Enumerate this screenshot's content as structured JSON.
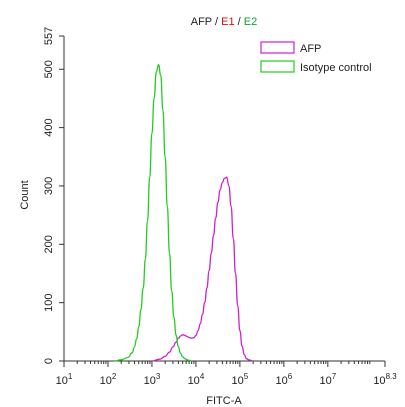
{
  "chart_data": {
    "type": "line",
    "title_parts": [
      {
        "text": "AFP",
        "color": "#222222"
      },
      {
        "text": " / ",
        "color": "#222222"
      },
      {
        "text": "E1",
        "color": "#d01010"
      },
      {
        "text": " / ",
        "color": "#222222"
      },
      {
        "text": "E2",
        "color": "#10a030"
      }
    ],
    "xlabel": "FITC-A",
    "ylabel": "Count",
    "x_scale": "log",
    "xlim": [
      10,
      199526231
    ],
    "ylim": [
      0,
      557
    ],
    "x_ticks": [
      {
        "value": 10,
        "base": "10",
        "exp": "1"
      },
      {
        "value": 100,
        "base": "10",
        "exp": "2"
      },
      {
        "value": 1000,
        "base": "10",
        "exp": "3"
      },
      {
        "value": 10000,
        "base": "10",
        "exp": "4"
      },
      {
        "value": 100000,
        "base": "10",
        "exp": "5"
      },
      {
        "value": 1000000,
        "base": "10",
        "exp": "6"
      },
      {
        "value": 10000000,
        "base": "10",
        "exp": "7"
      },
      {
        "value": 199526231,
        "base": "10",
        "exp": "8.3"
      }
    ],
    "y_ticks": [
      {
        "value": 0,
        "label": "0"
      },
      {
        "value": 100,
        "label": "100"
      },
      {
        "value": 200,
        "label": "200"
      },
      {
        "value": 300,
        "label": "300"
      },
      {
        "value": 400,
        "label": "400"
      },
      {
        "value": 500,
        "label": "500"
      },
      {
        "value": 557,
        "label": "557"
      }
    ],
    "grid": false,
    "legend_position": "top-right",
    "series": [
      {
        "name": "AFP",
        "color": "#cc22cc",
        "x": [
          1000,
          1500,
          2000,
          2500,
          3000,
          3500,
          4000,
          4500,
          5000,
          5600,
          6300,
          7100,
          8000,
          9000,
          10000,
          11200,
          12600,
          14100,
          15800,
          17800,
          20000,
          22400,
          25100,
          28200,
          31600,
          35500,
          39800,
          44700,
          50100,
          56200,
          63100,
          70800,
          79400,
          89100,
          100000,
          112000,
          126000,
          141000,
          158000,
          178000,
          200000
        ],
        "y": [
          0,
          3,
          8,
          15,
          24,
          32,
          39,
          43,
          45,
          44,
          42,
          40,
          39,
          40,
          44,
          52,
          64,
          80,
          100,
          125,
          155,
          185,
          215,
          245,
          272,
          293,
          306,
          313,
          315,
          300,
          265,
          210,
          150,
          95,
          52,
          25,
          11,
          4,
          2,
          1,
          0
        ]
      },
      {
        "name": "Isotype control",
        "color": "#22cc22",
        "x": [
          141,
          200,
          282,
          355,
          398,
          447,
          501,
          562,
          631,
          708,
          794,
          891,
          1000,
          1122,
          1259,
          1413,
          1585,
          1778,
          1995,
          2239,
          2512,
          2818,
          3162,
          3548,
          3981,
          4467,
          5012,
          5623,
          6310,
          7079,
          7943
        ],
        "y": [
          0,
          2,
          6,
          14,
          24,
          38,
          58,
          88,
          125,
          175,
          240,
          315,
          390,
          450,
          495,
          508,
          490,
          430,
          350,
          265,
          185,
          120,
          75,
          44,
          25,
          13,
          7,
          4,
          2,
          1,
          0
        ]
      }
    ]
  }
}
